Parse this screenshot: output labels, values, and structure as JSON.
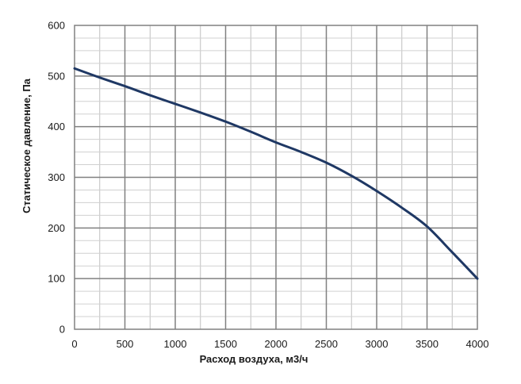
{
  "chart_data": {
    "type": "line",
    "title": "",
    "xlabel": "Расход воздуха, м3/ч",
    "ylabel": "Статическое давление, Па",
    "xlim": [
      0,
      4000
    ],
    "ylim": [
      0,
      600
    ],
    "x_ticks": [
      "0",
      "500",
      "1000",
      "1500",
      "2000",
      "2500",
      "3000",
      "3500",
      "4000"
    ],
    "y_ticks": [
      "0",
      "100",
      "200",
      "300",
      "400",
      "500",
      "600"
    ],
    "grid": true,
    "minor_grid_x_step": 250,
    "minor_grid_y_step": 25,
    "line_color": "#1f3864",
    "series": [
      {
        "x": [
          0,
          250,
          500,
          750,
          1000,
          1250,
          1500,
          1750,
          2000,
          2250,
          2500,
          2750,
          3000,
          3250,
          3500,
          3750,
          4000
        ],
        "values": [
          515,
          497,
          480,
          462,
          445,
          428,
          410,
          390,
          369,
          350,
          329,
          303,
          273,
          240,
          203,
          152,
          100
        ]
      }
    ]
  }
}
